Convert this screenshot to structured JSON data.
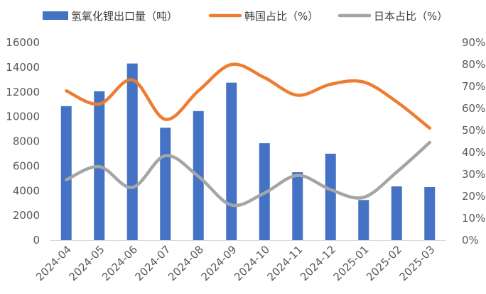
{
  "chart_data": {
    "type": "bar+line",
    "categories": [
      "2024-04",
      "2024-05",
      "2024-06",
      "2024-07",
      "2024-08",
      "2024-09",
      "2024-10",
      "2024-11",
      "2024-12",
      "2025-01",
      "2025-02",
      "2025-03"
    ],
    "series": [
      {
        "name": "氢氧化锂出口量（吨）",
        "type": "bar",
        "axis": "left",
        "color": "#4472C4",
        "values": [
          10850,
          12050,
          14300,
          9100,
          10450,
          12750,
          7850,
          5500,
          7000,
          3250,
          4350,
          4300
        ]
      },
      {
        "name": "韩国占比（%）",
        "type": "line",
        "axis": "right",
        "color": "#ED7D31",
        "values": [
          68,
          62,
          73,
          55,
          68,
          80,
          74,
          66,
          71,
          72,
          63,
          51
        ]
      },
      {
        "name": "日本占比（%）",
        "type": "line",
        "axis": "right",
        "color": "#A5A5A5",
        "values": [
          27.5,
          33.5,
          24,
          38.5,
          29,
          16,
          21.5,
          29.5,
          23,
          19.5,
          31,
          44.5
        ]
      }
    ],
    "left_axis": {
      "min": 0,
      "max": 16000,
      "step": 2000,
      "ticks": [
        "0",
        "2000",
        "4000",
        "6000",
        "8000",
        "10000",
        "12000",
        "14000",
        "16000"
      ]
    },
    "right_axis": {
      "min": 0,
      "max": 90,
      "step": 10,
      "ticks": [
        "0%",
        "10%",
        "20%",
        "30%",
        "40%",
        "50%",
        "60%",
        "70%",
        "80%",
        "90%"
      ]
    },
    "legend_position": "top",
    "grid": false
  }
}
